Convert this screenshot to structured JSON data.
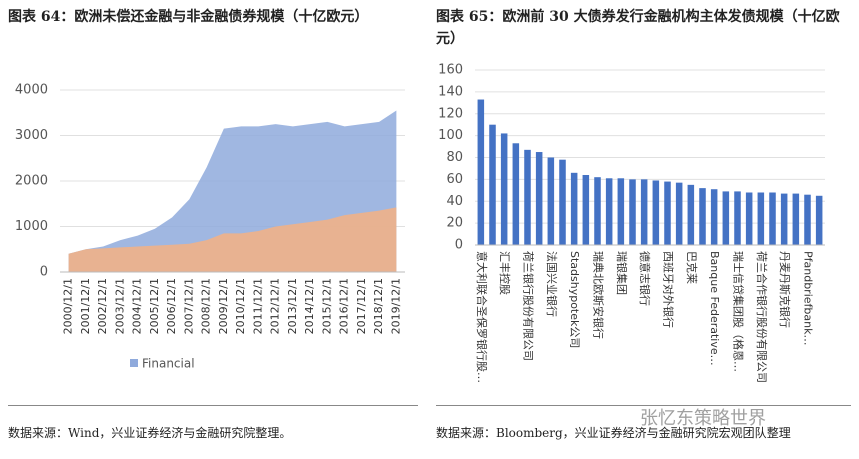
{
  "chart_data": [
    {
      "type": "area",
      "title": "图表 64：欧洲未偿还金融与非金融债券规模（十亿欧元）",
      "categories": [
        "2000/12/1",
        "2001/12/1",
        "2002/12/1",
        "2003/12/1",
        "2004/12/1",
        "2005/12/1",
        "2006/12/1",
        "2007/12/1",
        "2008/12/1",
        "2009/12/1",
        "2010/12/1",
        "2011/12/1",
        "2012/12/1",
        "2013/12/1",
        "2014/12/1",
        "2015/12/1",
        "2016/12/1",
        "2017/12/1",
        "2018/12/1",
        "2019/12/1"
      ],
      "series": [
        {
          "name": "Financial",
          "color": "#8faadc",
          "values": [
            400,
            500,
            560,
            700,
            800,
            950,
            1200,
            1600,
            2300,
            3150,
            3200,
            3200,
            3250,
            3200,
            3250,
            3300,
            3200,
            3250,
            3300,
            3550
          ]
        },
        {
          "color": "#f4b183",
          "values": [
            400,
            500,
            520,
            540,
            560,
            580,
            600,
            620,
            700,
            850,
            850,
            900,
            1000,
            1050,
            1100,
            1150,
            1250,
            1300,
            1350,
            1420
          ]
        }
      ],
      "ylim": [
        0,
        4000
      ],
      "yticks": [
        0,
        1000,
        2000,
        3000,
        4000
      ]
    },
    {
      "type": "bar",
      "title": "图表 65：欧洲前 30 大债券发行金融机构主体发债规模（十亿欧元）",
      "categories": [
        "意大利联合圣保罗银行股…",
        null,
        "汇丰控股",
        null,
        "荷兰银行股份有限公司",
        null,
        "法国兴业银行",
        null,
        "Stadshypotek公司",
        null,
        "瑞典北欧斯安银行",
        null,
        "瑞银集团",
        null,
        "德意志银行",
        null,
        "西班牙对外银行",
        null,
        "巴克莱",
        null,
        "Banque Federative…",
        null,
        "瑞士信贷集团股（格恩…",
        null,
        "荷兰合作银行股份有限公司",
        null,
        "丹麦丹斯克银行",
        null,
        "Pfandbriefbank…",
        null
      ],
      "values": [
        133,
        110,
        102,
        93,
        87,
        85,
        80,
        78,
        66,
        64,
        62,
        61,
        61,
        60,
        60,
        59,
        58,
        57,
        55,
        52,
        51,
        49,
        49,
        48,
        48,
        48,
        47,
        47,
        46,
        45
      ],
      "color": "#4472c4",
      "ylim": [
        0,
        160
      ],
      "yticks": [
        0,
        20,
        40,
        60,
        80,
        100,
        120,
        140,
        160
      ]
    }
  ],
  "sources": [
    "数据来源：Wind，兴业证券经济与金融研究院整理。",
    "数据来源：Bloomberg，兴业证券经济与金融研究院宏观团队整理"
  ],
  "watermark": "张忆东策略世界"
}
